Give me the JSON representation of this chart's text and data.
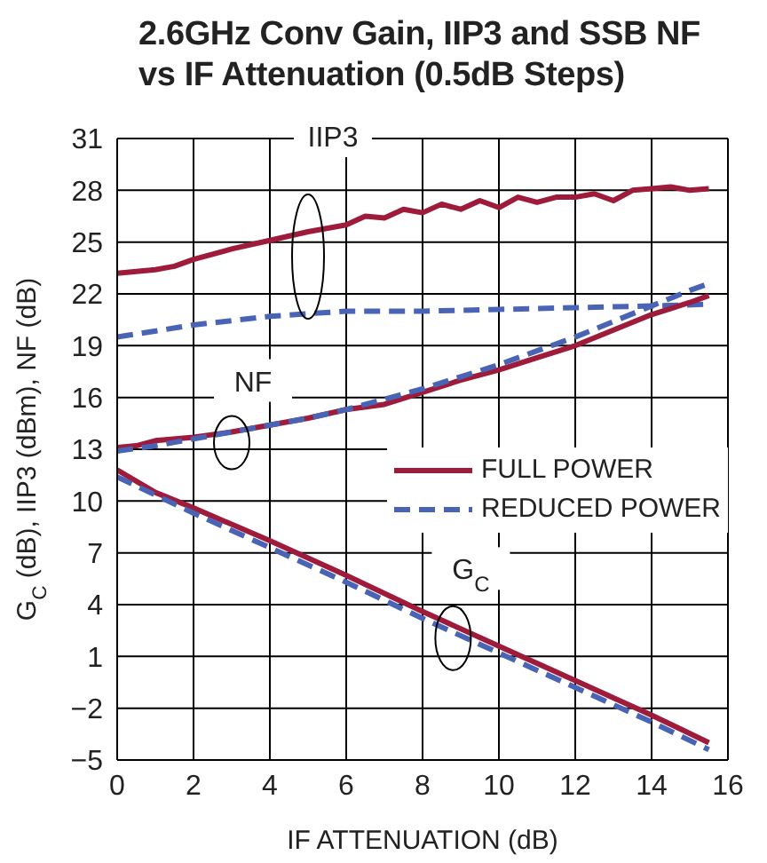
{
  "chart_data": {
    "type": "line",
    "title": "2.6GHz Conv Gain, IIP3 and SSB NF vs IF Attenuation (0.5dB Steps)",
    "xlabel": "IF ATTENUATION (dB)",
    "ylabel": "G$_{C}$ (dB), IIP3 (dBm), NF (dB)",
    "xlim": [
      0,
      16
    ],
    "xticks": [
      0,
      2,
      4,
      6,
      8,
      10,
      12,
      14,
      16
    ],
    "ylim": [
      -5,
      31
    ],
    "yticks": [
      -5,
      -2,
      1,
      4,
      7,
      10,
      13,
      16,
      19,
      22,
      25,
      28,
      31
    ],
    "grid": true,
    "legend": "right",
    "marker": "none",
    "series": [
      {
        "name": "FULL POWER",
        "color": "#9e1b3c",
        "line_style": "solid",
        "x": [
          0,
          1,
          2,
          4,
          6,
          8,
          10,
          12,
          14,
          15.5
        ],
        "values": [
          11.8,
          10.5,
          9.6,
          7.7,
          5.7,
          3.6,
          1.6,
          -0.4,
          -2.4,
          -4.0
        ]
      },
      {
        "name": "REDUCED POWER",
        "color": "#4a64b5",
        "line_style": "dashed",
        "x": [
          0,
          2,
          4,
          6,
          8,
          10,
          12,
          14,
          15.5
        ],
        "values": [
          11.4,
          9.3,
          7.3,
          5.3,
          3.2,
          1.2,
          -0.8,
          -2.8,
          -4.4
        ]
      },
      {
        "color": "#9e1b3c",
        "line_style": "solid",
        "x": [
          0,
          1,
          1.5,
          2,
          3,
          4,
          5,
          6,
          6.5,
          7,
          7.5,
          8,
          8.5,
          9,
          9.5,
          10,
          10.5,
          11,
          11.5,
          12,
          12.5,
          13,
          13.5,
          14,
          14.5,
          15,
          15.5
        ],
        "values": [
          23.2,
          23.4,
          23.6,
          24.0,
          24.6,
          25.1,
          25.6,
          26.0,
          26.5,
          26.4,
          26.9,
          26.7,
          27.2,
          26.9,
          27.4,
          27.0,
          27.6,
          27.3,
          27.6,
          27.6,
          27.8,
          27.4,
          28.0,
          28.1,
          28.2,
          28.0,
          28.1
        ]
      },
      {
        "color": "#4a64b5",
        "line_style": "dashed",
        "x": [
          0,
          2,
          4,
          6,
          8,
          10,
          12,
          14,
          15.5
        ],
        "values": [
          19.5,
          20.2,
          20.7,
          21.0,
          21.0,
          21.1,
          21.2,
          21.3,
          21.4
        ]
      },
      {
        "color": "#9e1b3c",
        "line_style": "solid",
        "x": [
          0,
          0.5,
          1,
          2,
          3,
          4,
          5,
          6,
          7,
          8,
          9,
          10,
          11,
          12,
          13,
          14,
          15,
          15.5
        ],
        "values": [
          13.1,
          13.2,
          13.5,
          13.7,
          14.0,
          14.4,
          14.8,
          15.3,
          15.6,
          16.3,
          17.0,
          17.6,
          18.3,
          19.0,
          19.9,
          20.8,
          21.5,
          21.9
        ]
      },
      {
        "color": "#4a64b5",
        "line_style": "dashed",
        "x": [
          0,
          1,
          2,
          3,
          4,
          5,
          6,
          7,
          8,
          9,
          10,
          11,
          12,
          13,
          14,
          15,
          15.5
        ],
        "values": [
          12.9,
          13.2,
          13.6,
          14.0,
          14.4,
          14.8,
          15.3,
          15.9,
          16.5,
          17.2,
          17.9,
          18.7,
          19.5,
          20.4,
          21.3,
          22.2,
          22.6
        ]
      }
    ],
    "annotations": [
      {
        "text": "IIP3",
        "x": 5,
        "y": 25.6
      },
      {
        "text": "NF",
        "x": 3,
        "y": 14.0
      },
      {
        "text": "G$_{C}$",
        "x": 8.8,
        "y": 2.8
      }
    ]
  }
}
